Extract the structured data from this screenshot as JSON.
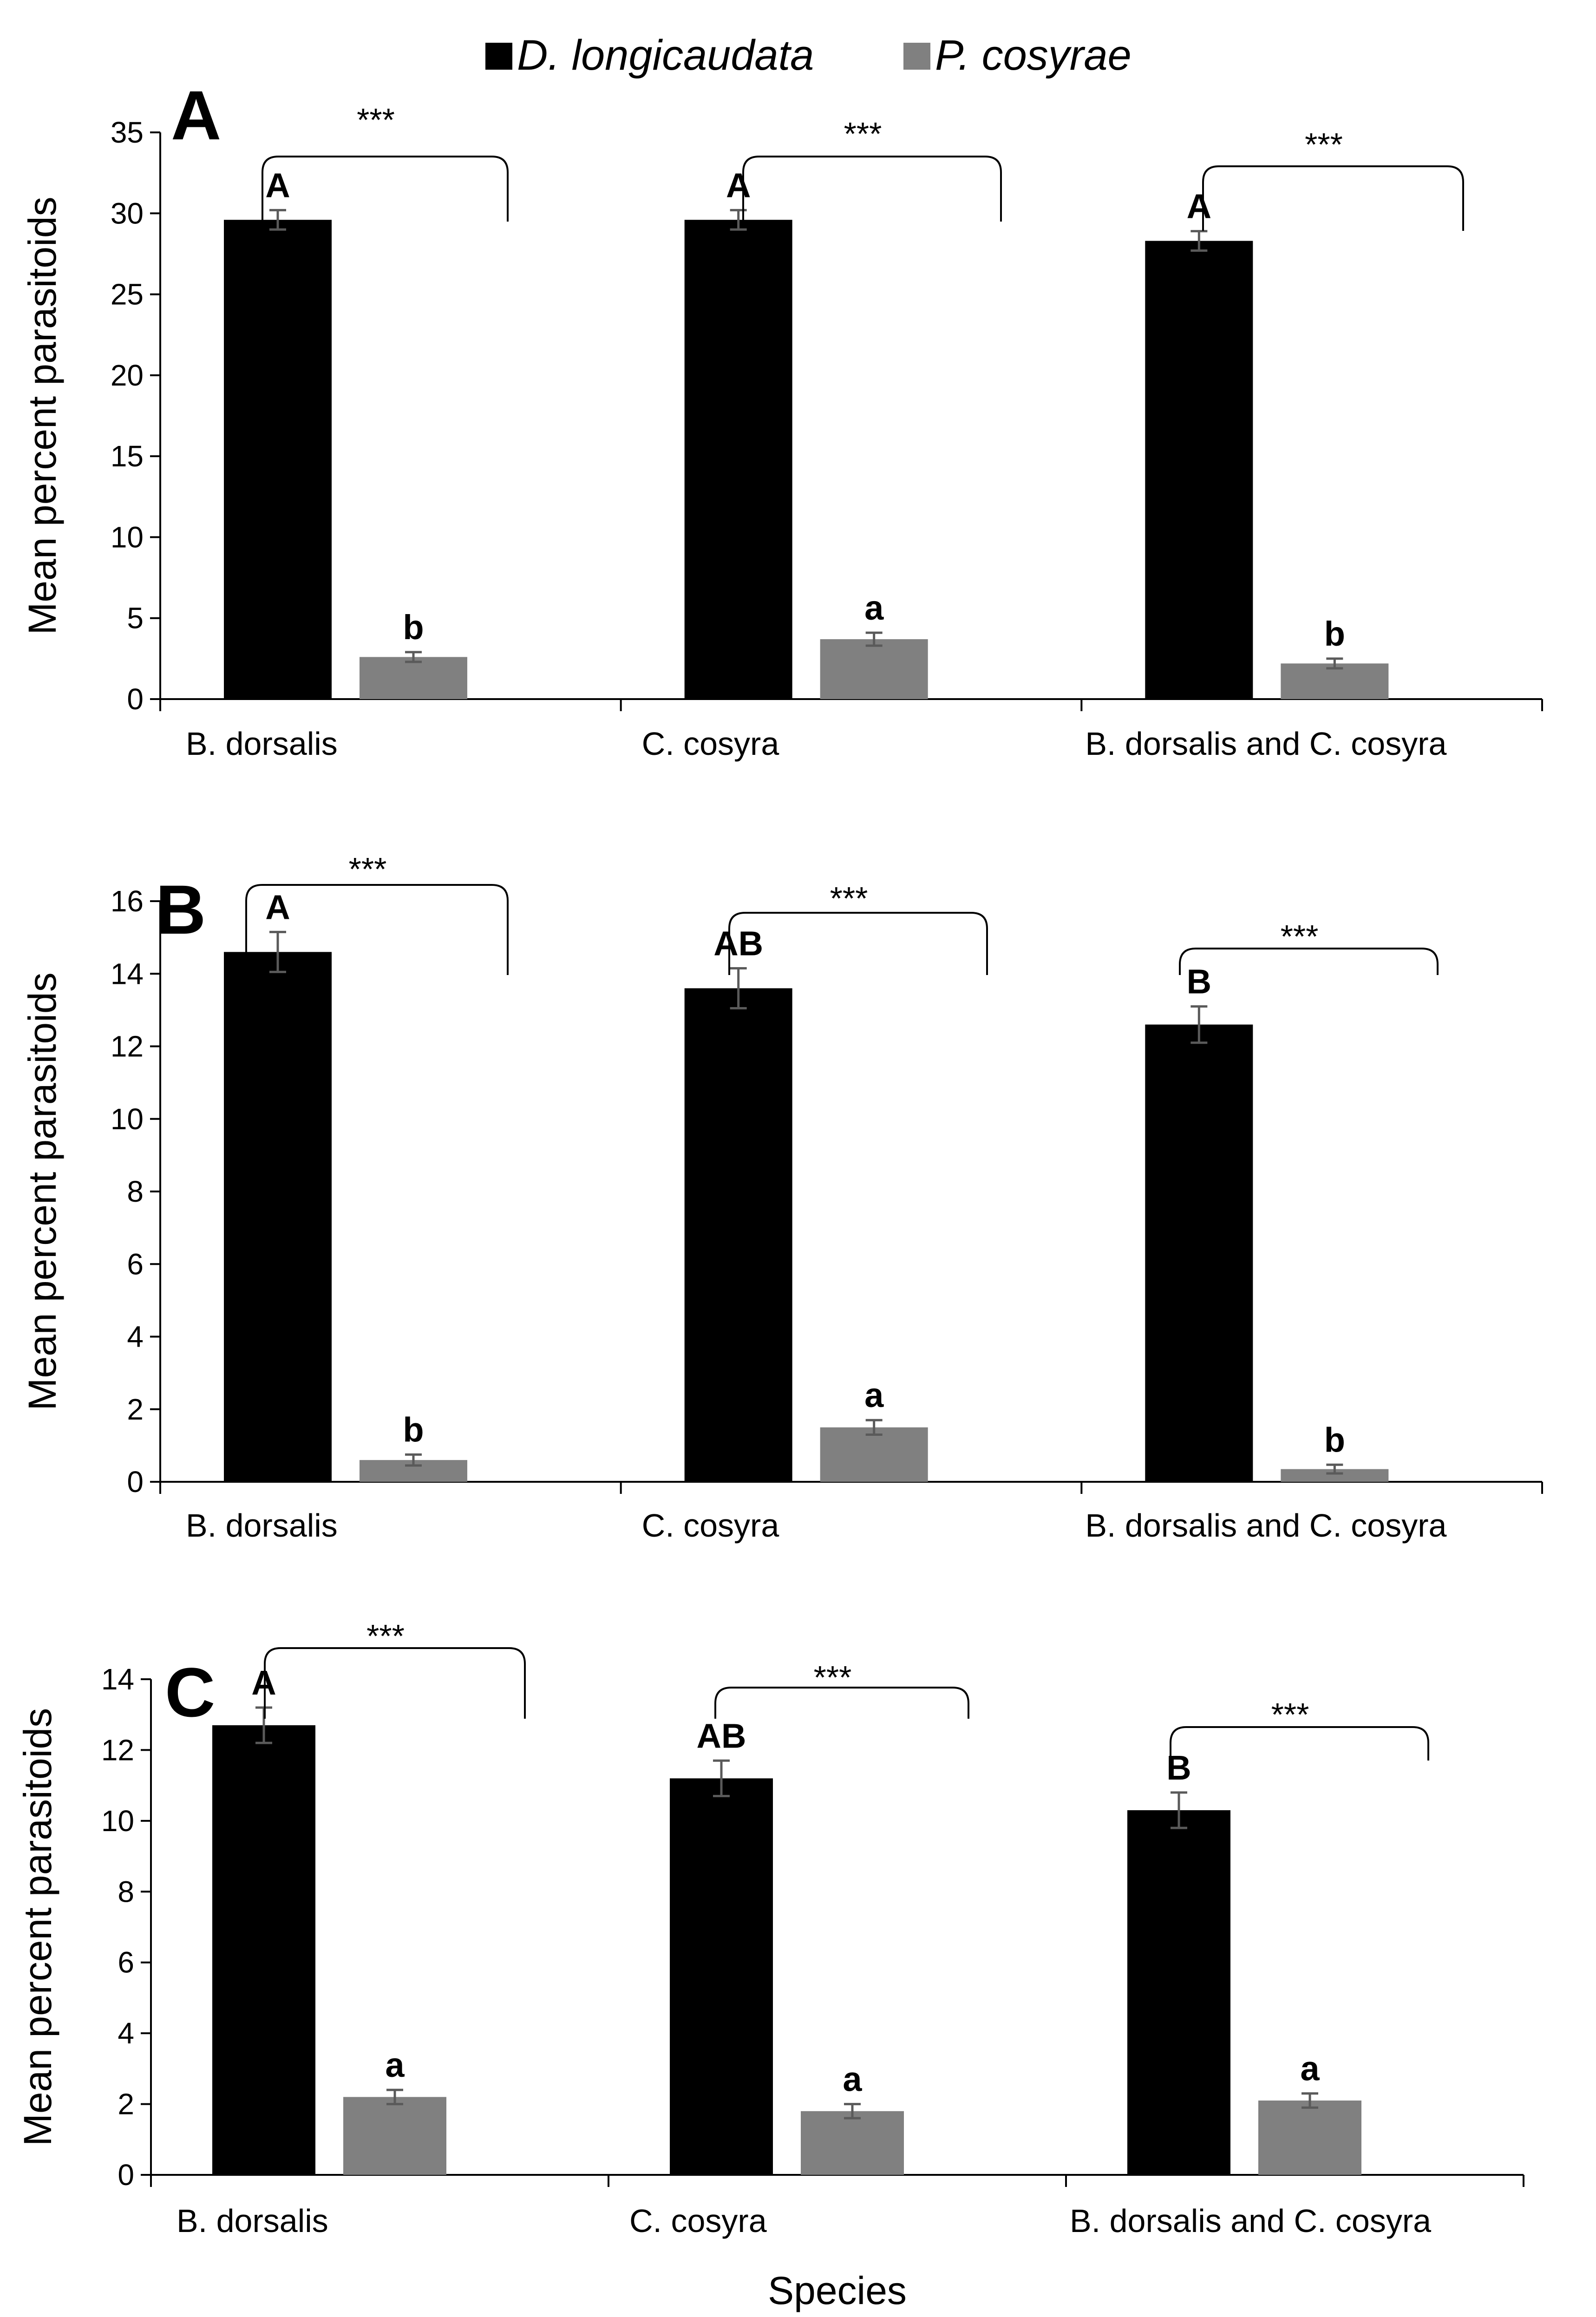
{
  "legend": [
    {
      "name": "D. longicaudata",
      "color": "#000000"
    },
    {
      "name": "P. cosyrae",
      "color": "#808080"
    }
  ],
  "chart_data": [
    {
      "type": "bar",
      "panel": "A",
      "categories": [
        "B. dorsalis",
        "C. cosyra",
        "B. dorsalis and C. cosyra"
      ],
      "series": [
        {
          "name": "D. longicaudata",
          "values": [
            29.6,
            29.6,
            28.3
          ],
          "errors": [
            0.6,
            0.6,
            0.6
          ],
          "letters": [
            "A",
            "A",
            "A"
          ]
        },
        {
          "name": "P. cosyrae",
          "values": [
            2.6,
            3.7,
            2.2
          ],
          "errors": [
            0.3,
            0.4,
            0.3
          ],
          "letters": [
            "b",
            "a",
            "b"
          ]
        }
      ],
      "significance": [
        "***",
        "***",
        "***"
      ],
      "ylabel": "Mean percent parasitoids",
      "xlabel": "",
      "ylim": [
        0,
        35
      ],
      "yticks": [
        "0",
        "5",
        "10",
        "15",
        "20",
        "25",
        "30",
        "35"
      ]
    },
    {
      "type": "bar",
      "panel": "B",
      "categories": [
        "B. dorsalis",
        "C. cosyra",
        "B. dorsalis and C. cosyra"
      ],
      "series": [
        {
          "name": "D. longicaudata",
          "values": [
            14.6,
            13.6,
            12.6
          ],
          "errors": [
            0.55,
            0.55,
            0.5
          ],
          "letters": [
            "A",
            "AB",
            "B"
          ]
        },
        {
          "name": "P. cosyrae",
          "values": [
            0.6,
            1.5,
            0.35
          ],
          "errors": [
            0.15,
            0.2,
            0.12
          ],
          "letters": [
            "b",
            "a",
            "b"
          ]
        }
      ],
      "significance": [
        "***",
        "***",
        "***"
      ],
      "ylabel": "Mean percent parasitoids",
      "xlabel": "",
      "ylim": [
        0,
        16
      ],
      "yticks": [
        "0",
        "2",
        "4",
        "6",
        "8",
        "10",
        "12",
        "14",
        "16"
      ]
    },
    {
      "type": "bar",
      "panel": "C",
      "categories": [
        "B. dorsalis",
        "C. cosyra",
        "B. dorsalis and C. cosyra"
      ],
      "series": [
        {
          "name": "D. longicaudata",
          "values": [
            12.7,
            11.2,
            10.3
          ],
          "errors": [
            0.5,
            0.5,
            0.5
          ],
          "letters": [
            "A",
            "AB",
            "B"
          ]
        },
        {
          "name": "P. cosyrae",
          "values": [
            2.2,
            1.8,
            2.1
          ],
          "errors": [
            0.2,
            0.2,
            0.2
          ],
          "letters": [
            "a",
            "a",
            "a"
          ]
        }
      ],
      "significance": [
        "***",
        "***",
        "***"
      ],
      "ylabel": "Mean percent parasitoids",
      "xlabel": "Species",
      "ylim": [
        0,
        14
      ],
      "yticks": [
        "0",
        "2",
        "4",
        "6",
        "8",
        "10",
        "12",
        "14"
      ]
    }
  ]
}
